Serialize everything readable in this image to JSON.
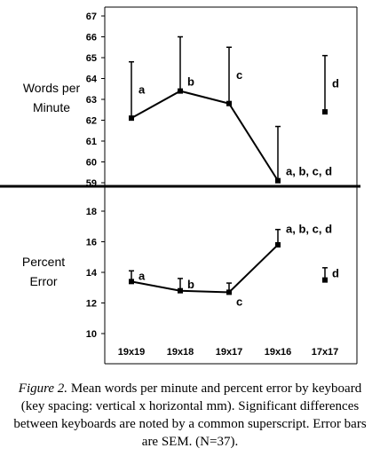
{
  "chart_data": [
    {
      "type": "line",
      "panel": "top",
      "ylabel": [
        "Words per",
        "Minute"
      ],
      "ylim": [
        59,
        67
      ],
      "yticks": [
        59,
        60,
        61,
        62,
        63,
        64,
        65,
        66,
        67
      ],
      "categories": [
        "19x19",
        "19x18",
        "19x17",
        "19x16",
        "17x17"
      ],
      "connected_count": 4,
      "values": [
        62.1,
        63.4,
        62.8,
        59.1,
        62.4
      ],
      "error_upper": [
        64.8,
        66.0,
        65.5,
        61.7,
        65.1
      ],
      "annotations": [
        "a",
        "b",
        "c",
        "a, b, c, d",
        "d"
      ]
    },
    {
      "type": "line",
      "panel": "bottom",
      "ylabel": [
        "Percent",
        "Error"
      ],
      "ylim": [
        10,
        18
      ],
      "yticks": [
        10,
        12,
        14,
        16,
        18
      ],
      "categories": [
        "19x19",
        "19x18",
        "19x17",
        "19x16",
        "17x17"
      ],
      "connected_count": 4,
      "values": [
        13.4,
        12.8,
        12.7,
        15.8,
        13.5
      ],
      "error_upper": [
        14.1,
        13.6,
        13.3,
        16.8,
        14.3
      ],
      "annotations": [
        "a",
        "b",
        "c",
        "a, b, c, d",
        "d"
      ]
    }
  ],
  "caption": {
    "label": "Figure 2.",
    "text": " Mean words per minute and percent error by keyboard (key spacing: vertical x horizontal mm). Significant differences between keyboards are noted by a common superscript. Error bars are SEM. (N=37)."
  }
}
